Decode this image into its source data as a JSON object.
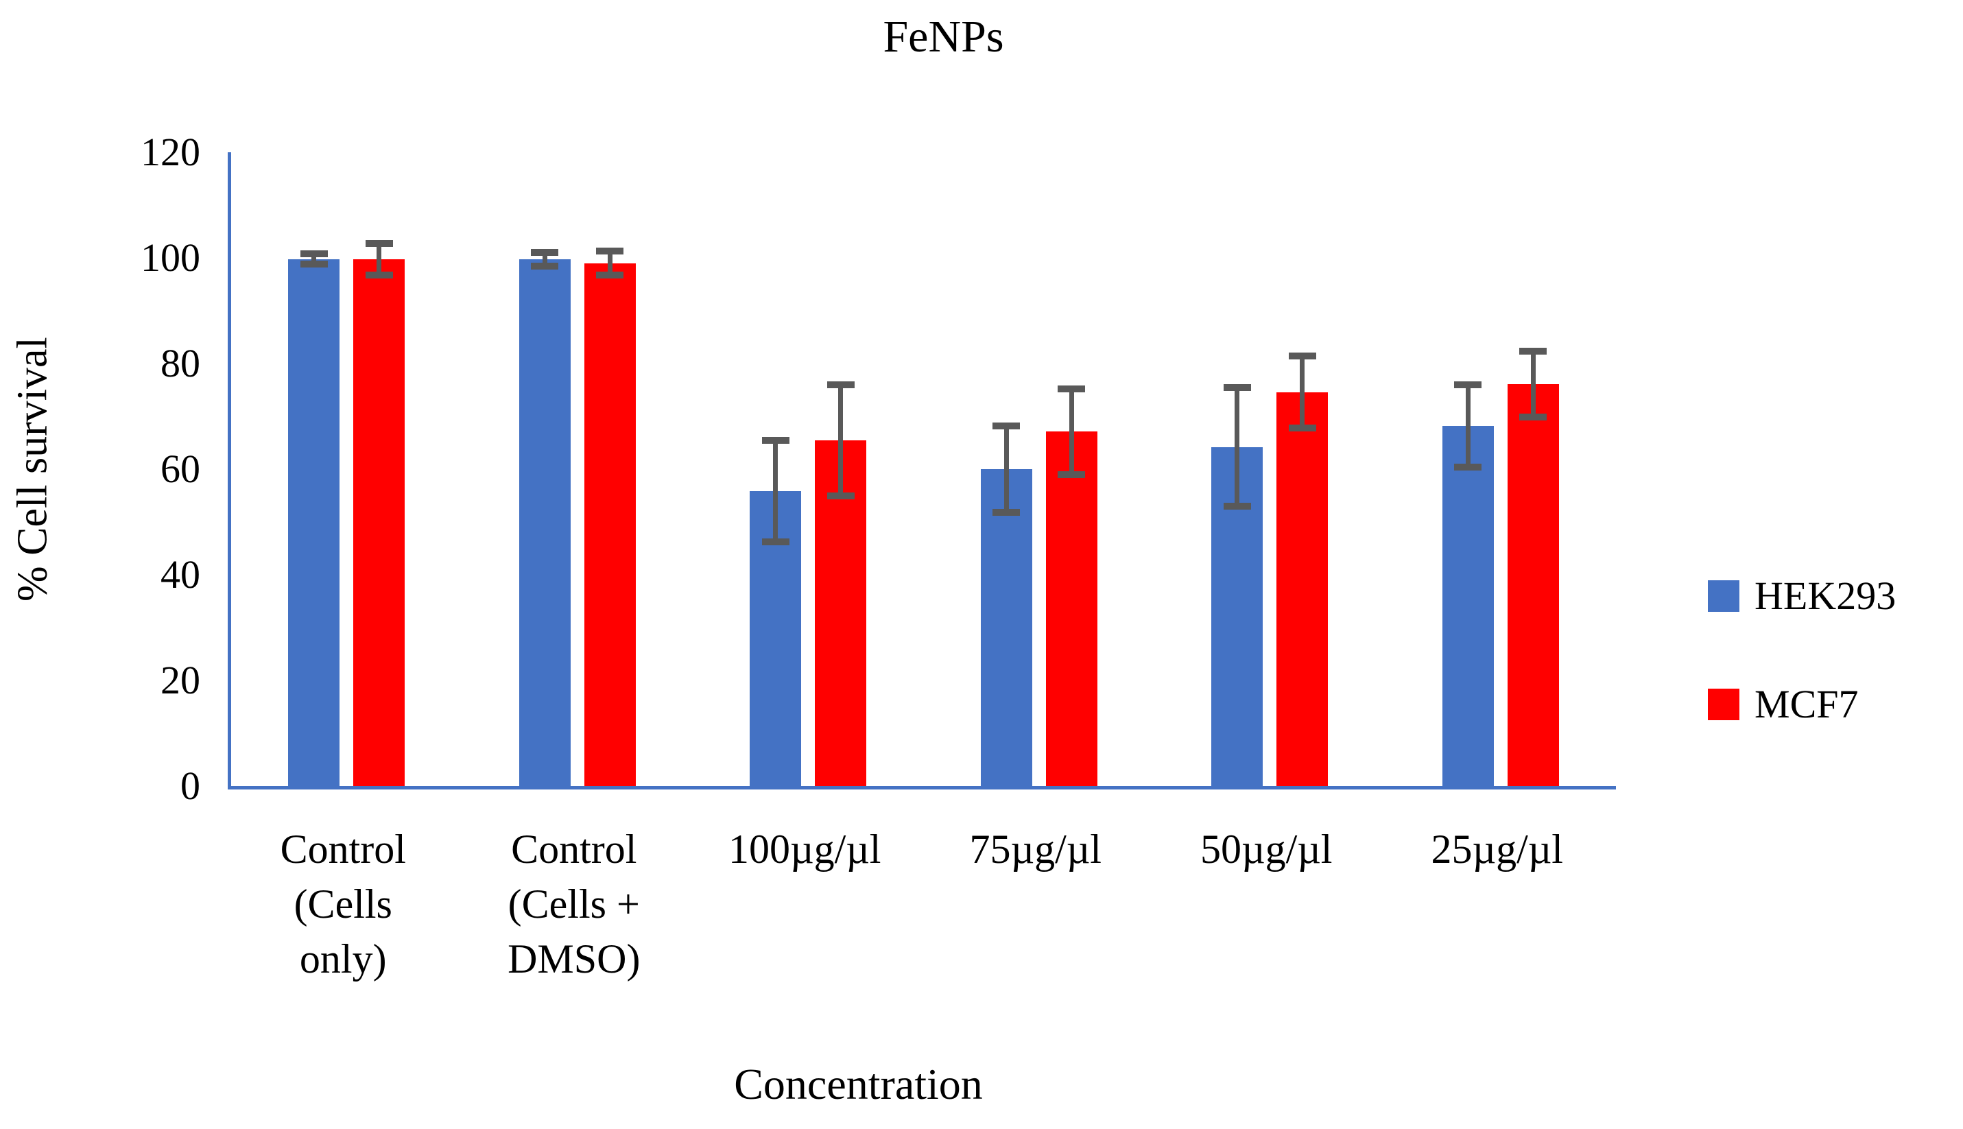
{
  "figure": {
    "title": "FeNPs"
  },
  "chart_data": {
    "type": "bar",
    "title": "FeNPs",
    "xlabel": "Concentration",
    "ylabel": "% Cell survival",
    "ylim": [
      0,
      120
    ],
    "yticks": [
      0,
      20,
      40,
      60,
      80,
      100,
      120
    ],
    "grid": false,
    "legend_position": "right",
    "categories": [
      "Control (Cells only)",
      "Control (Cells + DMSO)",
      "100µg/µl",
      "75µg/µl",
      "50µg/µl",
      "25µg/µl"
    ],
    "category_display": [
      "Control\n(Cells\nonly)",
      "Control\n(Cells +\nDMSO)",
      "100µg/µl",
      "75µg/µl",
      "50µg/µl",
      "25µg/µl"
    ],
    "series": [
      {
        "name": "HEK293",
        "color": "#4472C4",
        "values": [
          99.8,
          99.8,
          55.8,
          60.0,
          64.2,
          68.2
        ],
        "errors": [
          1.0,
          1.3,
          9.6,
          8.2,
          11.2,
          7.8
        ]
      },
      {
        "name": "MCF7",
        "color": "#FF0000",
        "values": [
          99.7,
          99.0,
          65.5,
          67.1,
          74.6,
          76.1
        ],
        "errors": [
          3.0,
          2.3,
          10.5,
          8.1,
          6.8,
          6.2
        ]
      }
    ],
    "error_bar_color": "#595959",
    "axis_color": "#4472C4"
  }
}
